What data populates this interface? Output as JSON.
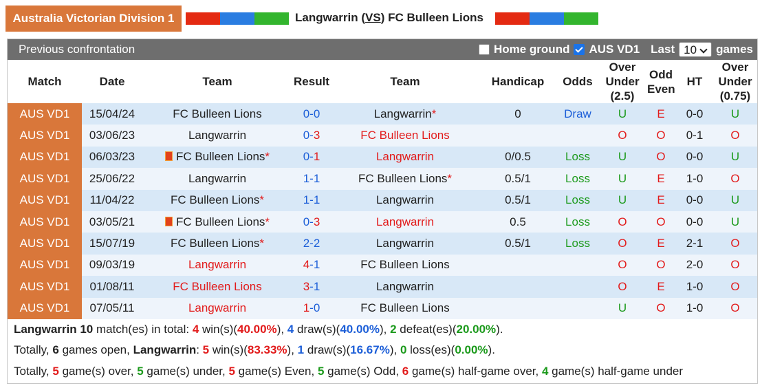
{
  "header": {
    "league": "Australia Victorian Division 1",
    "title_home": "Langwarrin (",
    "title_vs": "VS",
    "title_away": ") FC Bulleen Lions"
  },
  "toolbar": {
    "title": "Previous confrontation",
    "home_ground": "Home ground",
    "league_filter": "AUS VD1",
    "last": "Last",
    "count": "10",
    "games": "games"
  },
  "table": {
    "columns": [
      "Match",
      "Date",
      "Team",
      "Result",
      "Team",
      "Handicap",
      "Odds",
      "Over Under (2.5)",
      "Odd Even",
      "HT",
      "Over Under (0.75)"
    ],
    "score_separator": "-",
    "mark_colors": {
      "U": "#1c9a1c",
      "O": "#e21b1b",
      "E": "#e21b1b",
      "Draw": "#1d5fd8",
      "Loss": "#1c9a1c"
    },
    "rows": [
      {
        "match": "AUS VD1",
        "date": "15/04/24",
        "home": "FC Bulleen Lions",
        "score": [
          0,
          0
        ],
        "away": "Langwarrin",
        "away_mark": "*",
        "handicap": "0",
        "odds": "Draw",
        "ou": "U",
        "oe": "E",
        "ht": "0-0",
        "ou2": "U"
      },
      {
        "match": "AUS VD1",
        "date": "03/06/23",
        "home": "Langwarrin",
        "score": [
          0,
          3
        ],
        "away": "FC Bulleen Lions",
        "ou": "O",
        "oe": "O",
        "ht": "0-1",
        "ou2": "O"
      },
      {
        "match": "AUS VD1",
        "date": "06/03/23",
        "home": "FC Bulleen Lions",
        "home_flag": true,
        "home_mark": "*",
        "score": [
          0,
          1
        ],
        "away": "Langwarrin",
        "handicap": "0/0.5",
        "odds": "Loss",
        "ou": "U",
        "oe": "O",
        "ht": "0-0",
        "ou2": "U"
      },
      {
        "match": "AUS VD1",
        "date": "25/06/22",
        "home": "Langwarrin",
        "score": [
          1,
          1
        ],
        "away": "FC Bulleen Lions",
        "away_mark": "*",
        "handicap": "0.5/1",
        "odds": "Loss",
        "ou": "U",
        "oe": "E",
        "ht": "1-0",
        "ou2": "O"
      },
      {
        "match": "AUS VD1",
        "date": "11/04/22",
        "home": "FC Bulleen Lions",
        "home_mark": "*",
        "score": [
          1,
          1
        ],
        "away": "Langwarrin",
        "handicap": "0.5/1",
        "odds": "Loss",
        "ou": "U",
        "oe": "E",
        "ht": "0-0",
        "ou2": "U"
      },
      {
        "match": "AUS VD1",
        "date": "03/05/21",
        "home": "FC Bulleen Lions",
        "home_flag": true,
        "home_mark": "*",
        "score": [
          0,
          3
        ],
        "away": "Langwarrin",
        "handicap": "0.5",
        "odds": "Loss",
        "ou": "O",
        "oe": "O",
        "ht": "0-0",
        "ou2": "U"
      },
      {
        "match": "AUS VD1",
        "date": "15/07/19",
        "home": "FC Bulleen Lions",
        "home_mark": "*",
        "score": [
          2,
          2
        ],
        "away": "Langwarrin",
        "handicap": "0.5/1",
        "odds": "Loss",
        "ou": "O",
        "oe": "E",
        "ht": "2-1",
        "ou2": "O"
      },
      {
        "match": "AUS VD1",
        "date": "09/03/19",
        "home": "Langwarrin",
        "score": [
          4,
          1
        ],
        "away": "FC Bulleen Lions",
        "ou": "O",
        "oe": "O",
        "ht": "2-0",
        "ou2": "O"
      },
      {
        "match": "AUS VD1",
        "date": "01/08/11",
        "home": "FC Bulleen Lions",
        "score": [
          3,
          1
        ],
        "away": "Langwarrin",
        "ou": "O",
        "oe": "E",
        "ht": "1-0",
        "ou2": "O"
      },
      {
        "match": "AUS VD1",
        "date": "07/05/11",
        "home": "Langwarrin",
        "score": [
          1,
          0
        ],
        "away": "FC Bulleen Lions",
        "ou": "U",
        "oe": "O",
        "ht": "1-0",
        "ou2": "O"
      }
    ]
  },
  "summary": [
    [
      {
        "t": "Langwarrin 10",
        "b": true
      },
      {
        "t": " match(es) in total: "
      },
      {
        "t": "4",
        "c": "#e21b1b",
        "b": true
      },
      {
        "t": " win(s)("
      },
      {
        "t": "40.00%",
        "c": "#e21b1b",
        "b": true
      },
      {
        "t": "), "
      },
      {
        "t": "4",
        "c": "#1d5fd8",
        "b": true
      },
      {
        "t": " draw(s)("
      },
      {
        "t": "40.00%",
        "c": "#1d5fd8",
        "b": true
      },
      {
        "t": "), "
      },
      {
        "t": "2",
        "c": "#1c9a1c",
        "b": true
      },
      {
        "t": " defeat(es)("
      },
      {
        "t": "20.00%",
        "c": "#1c9a1c",
        "b": true
      },
      {
        "t": ")."
      }
    ],
    [
      {
        "t": "Totally, "
      },
      {
        "t": "6",
        "b": true
      },
      {
        "t": " games open, "
      },
      {
        "t": "Langwarrin",
        "b": true
      },
      {
        "t": ": "
      },
      {
        "t": "5",
        "c": "#e21b1b",
        "b": true
      },
      {
        "t": " win(s)("
      },
      {
        "t": "83.33%",
        "c": "#e21b1b",
        "b": true
      },
      {
        "t": "), "
      },
      {
        "t": "1",
        "c": "#1d5fd8",
        "b": true
      },
      {
        "t": " draw(s)("
      },
      {
        "t": "16.67%",
        "c": "#1d5fd8",
        "b": true
      },
      {
        "t": "), "
      },
      {
        "t": "0",
        "c": "#1c9a1c",
        "b": true
      },
      {
        "t": " loss(es)("
      },
      {
        "t": "0.00%",
        "c": "#1c9a1c",
        "b": true
      },
      {
        "t": ")."
      }
    ],
    [
      {
        "t": "Totally, "
      },
      {
        "t": "5",
        "c": "#e21b1b",
        "b": true
      },
      {
        "t": " game(s) over, "
      },
      {
        "t": "5",
        "c": "#1c9a1c",
        "b": true
      },
      {
        "t": " game(s) under, "
      },
      {
        "t": "5",
        "c": "#e21b1b",
        "b": true
      },
      {
        "t": " game(s) Even, "
      },
      {
        "t": "5",
        "c": "#1c9a1c",
        "b": true
      },
      {
        "t": " game(s) Odd, "
      },
      {
        "t": "6",
        "c": "#e21b1b",
        "b": true
      },
      {
        "t": " game(s) half-game over, "
      },
      {
        "t": "4",
        "c": "#1c9a1c",
        "b": true
      },
      {
        "t": " game(s) half-game under"
      }
    ]
  ]
}
